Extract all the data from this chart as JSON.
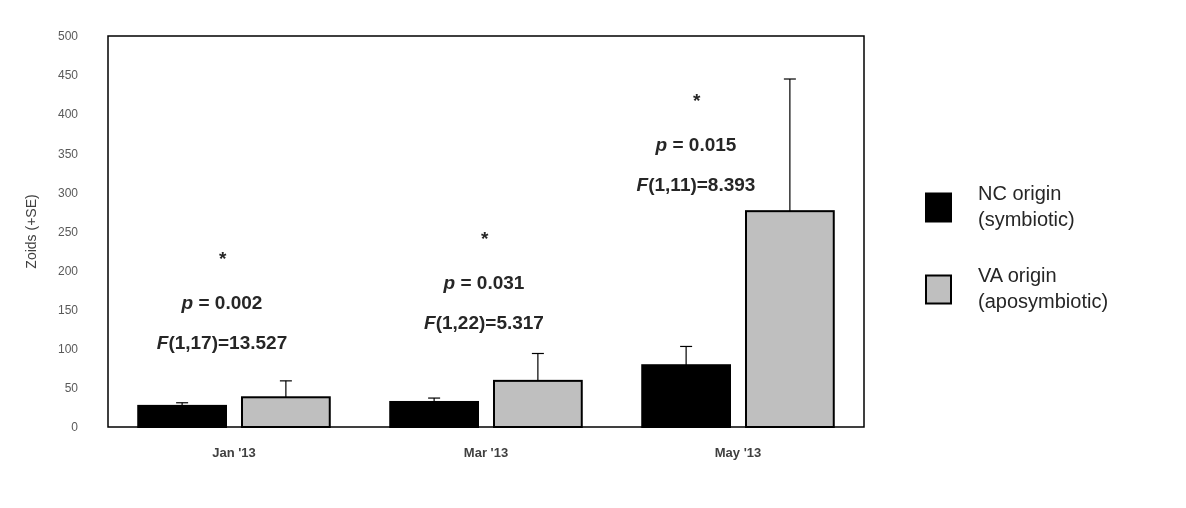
{
  "chart_data": {
    "type": "bar",
    "ylabel": "Zoids (+SE)",
    "categories": [
      "Jan '13",
      "Mar '13",
      "May '13"
    ],
    "series": [
      {
        "name": "NC origin\n(symbiotic)",
        "color": "#000000",
        "values": [
          27,
          32,
          79
        ],
        "errors": [
          [
            27,
            31
          ],
          [
            32,
            37
          ],
          [
            79,
            103
          ]
        ]
      },
      {
        "name": "VA origin\n(aposymbiotic)",
        "color": "#bfbfbf",
        "values": [
          38,
          59,
          276
        ],
        "errors": [
          [
            38,
            59
          ],
          [
            59,
            94
          ],
          [
            276,
            445
          ]
        ]
      }
    ],
    "ylim": [
      0,
      500
    ],
    "yticks": [
      0,
      50,
      100,
      150,
      200,
      250,
      300,
      350,
      400,
      450,
      500
    ],
    "grid": false,
    "legend": "right",
    "annotations": [
      "*",
      "p = 0.002",
      "F(1,17)=13.527",
      "*",
      "p = 0.031",
      "F(1,22)=5.317",
      "*",
      "p = 0.015",
      "F(1,11)=8.393"
    ]
  }
}
